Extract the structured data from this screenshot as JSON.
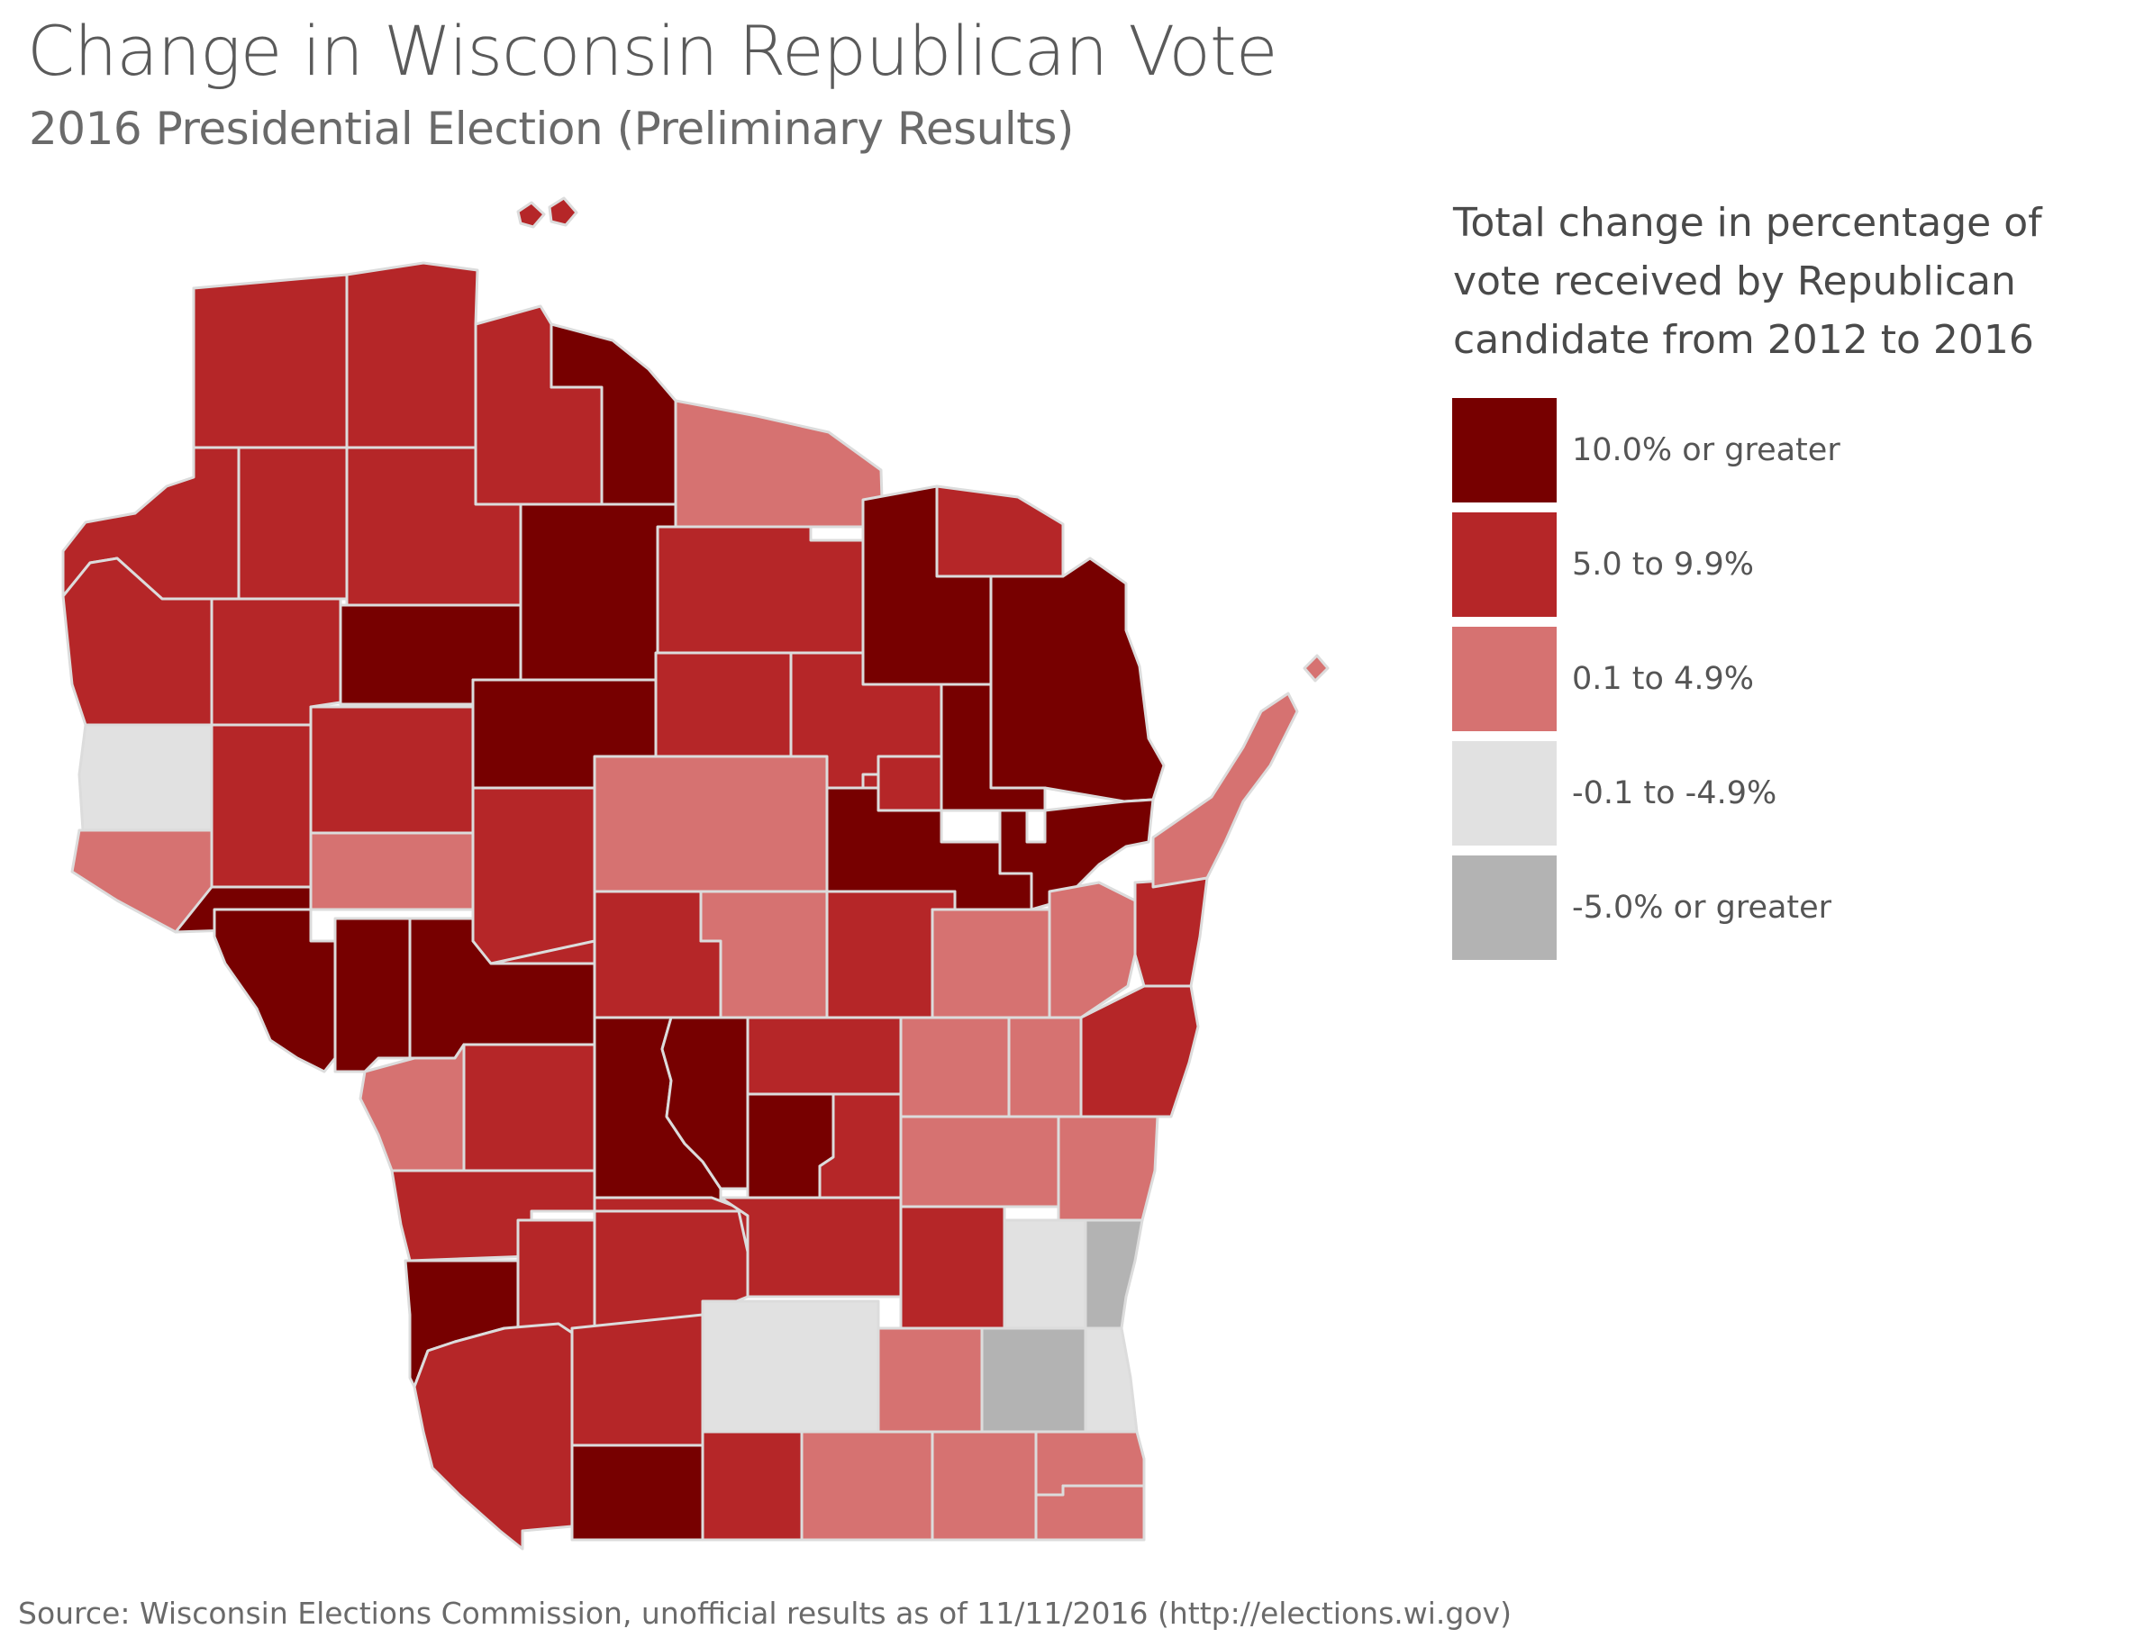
{
  "title": "Change in Wisconsin Republican Vote",
  "subtitle": "2016 Presidential Election (Preliminary Results)",
  "legend": {
    "title": "Total change in percentage of vote received by Republican candidate from 2012 to 2016",
    "items": [
      {
        "label": "10.0% or greater",
        "color": "#770000"
      },
      {
        "label": "5.0 to 9.9%",
        "color": "#b52628"
      },
      {
        "label": "0.1 to 4.9%",
        "color": "#d67271"
      },
      {
        "label": "-0.1 to -4.9%",
        "color": "#e1e1e1"
      },
      {
        "label": "-5.0% or greater",
        "color": "#b3b3b3"
      }
    ]
  },
  "source": "Source: Wisconsin Elections Commission, unofficial results as of 11/11/2016 (http://elections.wi.gov)",
  "colors": {
    "border": "#dcdcdc",
    "background": "#ffffff"
  }
}
